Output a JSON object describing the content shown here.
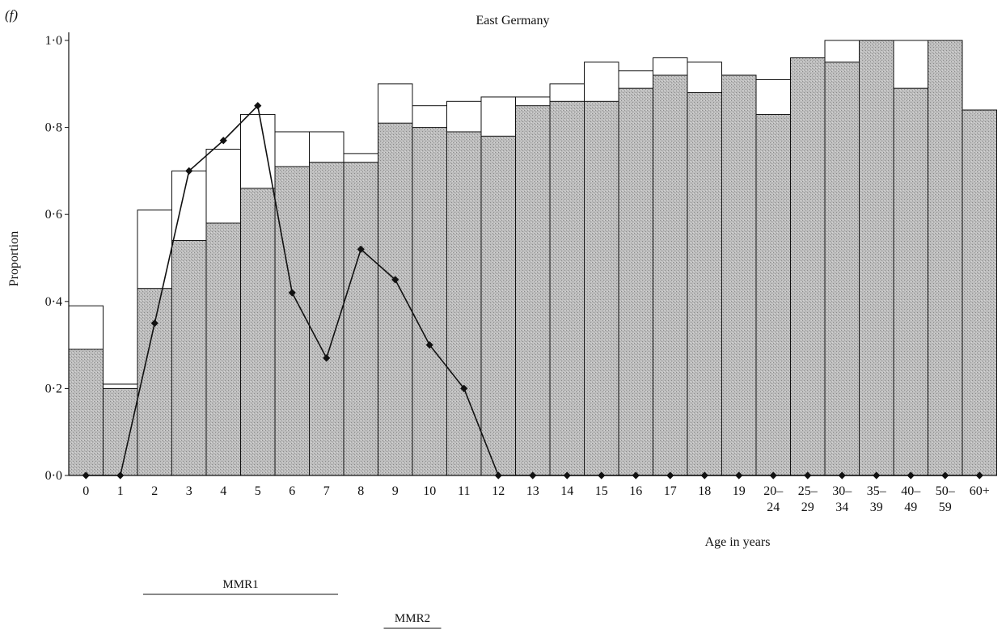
{
  "chart_data": {
    "type": "bar",
    "panel_label": "(f)",
    "title": "East Germany",
    "xlabel": "Age in years",
    "ylabel": "Proportion",
    "ylim": [
      0,
      1
    ],
    "y_ticks": [
      "0·0",
      "0·2",
      "0·4",
      "0·6",
      "0·8",
      "1·0"
    ],
    "categories": [
      [
        "0"
      ],
      [
        "1"
      ],
      [
        "2"
      ],
      [
        "3"
      ],
      [
        "4"
      ],
      [
        "5"
      ],
      [
        "6"
      ],
      [
        "7"
      ],
      [
        "8"
      ],
      [
        "9"
      ],
      [
        "10"
      ],
      [
        "11"
      ],
      [
        "12"
      ],
      [
        "13"
      ],
      [
        "14"
      ],
      [
        "15"
      ],
      [
        "16"
      ],
      [
        "17"
      ],
      [
        "18"
      ],
      [
        "19"
      ],
      [
        "20–",
        "24"
      ],
      [
        "25–",
        "29"
      ],
      [
        "30–",
        "34"
      ],
      [
        "35–",
        "39"
      ],
      [
        "40–",
        "49"
      ],
      [
        "50–",
        "59"
      ],
      [
        "60+"
      ]
    ],
    "series": [
      {
        "kind": "bar-shaded",
        "values": [
          0.29,
          0.2,
          0.43,
          0.54,
          0.58,
          0.66,
          0.71,
          0.72,
          0.72,
          0.81,
          0.8,
          0.79,
          0.78,
          0.85,
          0.86,
          0.86,
          0.89,
          0.92,
          0.88,
          0.92,
          0.83,
          0.96,
          0.95,
          1.0,
          0.89,
          1.0,
          0.84
        ]
      },
      {
        "kind": "bar-outline",
        "values": [
          0.39,
          0.21,
          0.61,
          0.7,
          0.75,
          0.83,
          0.79,
          0.79,
          0.74,
          0.9,
          0.85,
          0.86,
          0.87,
          0.87,
          0.9,
          0.95,
          0.93,
          0.96,
          0.95,
          0.92,
          0.91,
          0.96,
          1.0,
          1.0,
          1.0,
          1.0,
          0.84
        ]
      },
      {
        "kind": "line-diamond",
        "values": [
          0.0,
          0.0,
          0.35,
          0.7,
          0.77,
          0.85,
          0.42,
          0.27,
          0.52,
          0.45,
          0.3,
          0.2,
          0.0,
          0.0,
          0.0,
          0.0,
          0.0,
          0.0,
          0.0,
          0.0,
          0.0,
          0.0,
          0.0,
          0.0,
          0.0,
          0.0,
          0.0
        ]
      }
    ],
    "cohort_bars": [
      {
        "label": "MMR1",
        "from": 2,
        "to": 7
      },
      {
        "label": "MMR2",
        "from": 9,
        "to": 10
      }
    ]
  }
}
